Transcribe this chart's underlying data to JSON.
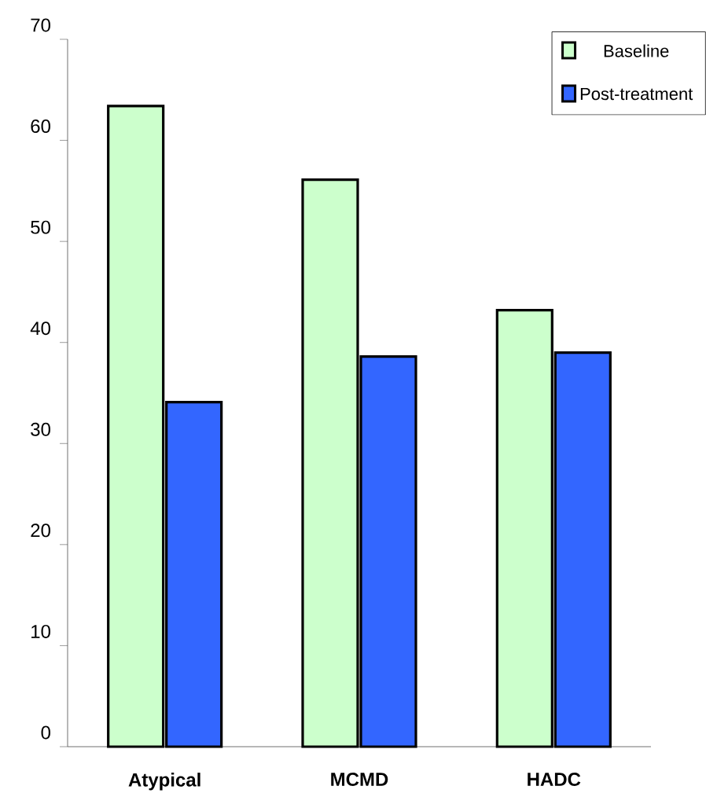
{
  "chart_data": {
    "type": "bar",
    "categories": [
      "Atypical",
      "MCMD",
      "HADC"
    ],
    "series": [
      {
        "name": "Baseline",
        "color": "#ccffcc",
        "values": [
          63.4,
          56.1,
          43.2
        ]
      },
      {
        "name": "Post-treatment",
        "color": "#3366ff",
        "values": [
          34.1,
          38.6,
          39.0
        ]
      }
    ],
    "ylim": [
      0,
      70
    ],
    "yticks": [
      0,
      10,
      20,
      30,
      40,
      50,
      60,
      70
    ],
    "grid": false,
    "legend": "top right"
  }
}
